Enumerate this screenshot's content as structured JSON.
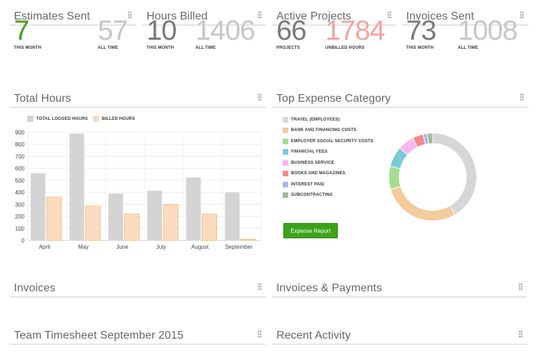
{
  "stats": {
    "estimates": {
      "title": "Estimates Sent",
      "left_value": "7",
      "left_label": "THIS MONTH",
      "left_color": "#4a9e22",
      "right_value": "57",
      "right_label": "ALL TIME",
      "right_color": "#c7c7c7"
    },
    "hours": {
      "title": "Hours Billed",
      "left_value": "10",
      "left_label": "THIS MONTH",
      "left_color": "#7a7a7a",
      "right_value": "1406",
      "right_label": "ALL TIME",
      "right_color": "#c7c7c7"
    },
    "projects": {
      "title": "Active Projects",
      "left_value": "66",
      "left_label": "PROJECTS",
      "left_color": "#7a7a7a",
      "right_value": "1784",
      "right_label": "UNBILLED HOURS",
      "right_color": "#f4a3a0"
    },
    "invoices_sent": {
      "title": "Invoices Sent",
      "left_value": "73",
      "left_label": "THIS MONTH",
      "left_color": "#7a7a7a",
      "right_value": "1008",
      "right_label": "ALL TIME",
      "right_color": "#c7c7c7"
    }
  },
  "total_hours": {
    "title": "Total Hours"
  },
  "expense": {
    "title": "Top Expense Category",
    "button_label": "Expense Report",
    "button_color": "#3ba31a"
  },
  "invoices": {
    "title": "Invoices"
  },
  "invoices_payments": {
    "title": "Invoices & Payments"
  },
  "timesheet": {
    "title": "Team Timesheet September 2015"
  },
  "recent_activity": {
    "title": "Recent Activity"
  },
  "icons": {
    "drag_handle": "drag-handle-icon"
  },
  "chart_data": [
    {
      "type": "bar",
      "title": "",
      "categories": [
        "April",
        "May",
        "June",
        "July",
        "August",
        "September"
      ],
      "series": [
        {
          "name": "TOTAL LOGGED HOURS",
          "color": "#d4d4d4",
          "values": [
            560,
            890,
            390,
            415,
            525,
            400
          ]
        },
        {
          "name": "BILLED HOURS",
          "color": "#fbdcc0",
          "values": [
            360,
            285,
            220,
            300,
            220,
            10
          ]
        }
      ],
      "ylim": [
        0,
        900
      ],
      "yticks": [
        0,
        100,
        200,
        300,
        400,
        500,
        600,
        700,
        800,
        900
      ],
      "grid": true,
      "legend": "top-left"
    },
    {
      "type": "pie",
      "title": "",
      "legend": "left",
      "slices": [
        {
          "name": "TRAVEL (EMPLOYEES)",
          "value": 41.5,
          "color": "#d6d6d6"
        },
        {
          "name": "BANK AND FINANCING COSTS",
          "value": 29,
          "color": "#f4cb9b"
        },
        {
          "name": "EMPLOYER SOCIAL SECURITY COSTS",
          "value": 8.5,
          "color": "#a6dc8e"
        },
        {
          "name": "FINANCIAL FEES",
          "value": 7.5,
          "color": "#7bcad8"
        },
        {
          "name": "BUSINESS SERVICE",
          "value": 6,
          "color": "#f9b6ee"
        },
        {
          "name": "BOOKS AND MAGAZINES",
          "value": 4,
          "color": "#f48a8a"
        },
        {
          "name": "INTEREST PAID",
          "value": 1.5,
          "color": "#aeb2f0"
        },
        {
          "name": "SUBCONTRACTING",
          "value": 2,
          "color": "#a8b89c"
        }
      ]
    }
  ]
}
